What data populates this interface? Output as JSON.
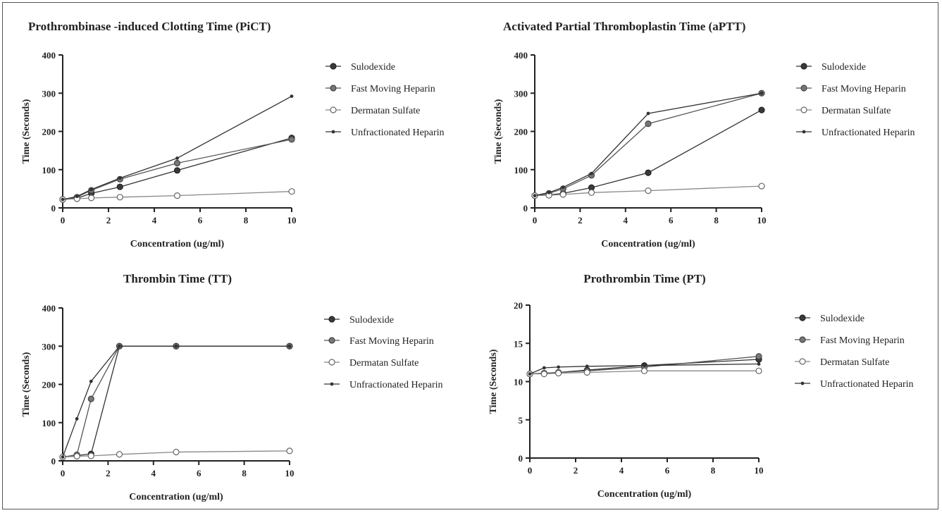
{
  "charts": [
    {
      "type": "line",
      "title": "Prothrombinase -induced Clotting Time (PiCT)",
      "xlabel": "Concentration (ug/ml)",
      "ylabel": "Time (Seconds)",
      "xlim": [
        0,
        10
      ],
      "ylim": [
        0,
        400
      ],
      "xticks": [
        0,
        2,
        4,
        6,
        8,
        10
      ],
      "yticks": [
        0,
        100,
        200,
        300,
        400
      ],
      "x": [
        0,
        0.625,
        1.25,
        2.5,
        5,
        10
      ],
      "series": [
        {
          "name": "Sulodexide",
          "values": [
            22,
            25,
            38,
            55,
            98,
            183
          ],
          "marker": "filled-dark"
        },
        {
          "name": "Fast Moving Heparin",
          "values": [
            22,
            28,
            46,
            75,
            117,
            179
          ],
          "marker": "filled-gray"
        },
        {
          "name": "Dermatan Sulfate",
          "values": [
            22,
            24,
            26,
            28,
            32,
            43
          ],
          "marker": "open"
        },
        {
          "name": "Unfractionated Heparin",
          "values": [
            22,
            30,
            48,
            78,
            130,
            292
          ],
          "marker": "small"
        }
      ]
    },
    {
      "type": "line",
      "title": "Activated  Partial Thromboplastin Time (aPTT)",
      "xlabel": "Concentration (ug/ml)",
      "ylabel": "Time (Seconds)",
      "xlim": [
        0,
        10
      ],
      "ylim": [
        0,
        400
      ],
      "xticks": [
        0,
        2,
        4,
        6,
        8,
        10
      ],
      "yticks": [
        0,
        100,
        200,
        300,
        400
      ],
      "x": [
        0,
        0.625,
        1.25,
        2.5,
        5,
        10
      ],
      "series": [
        {
          "name": "Sulodexide",
          "values": [
            32,
            34,
            38,
            53,
            92,
            256
          ],
          "marker": "filled-dark"
        },
        {
          "name": "Fast Moving Heparin",
          "values": [
            32,
            38,
            50,
            85,
            220,
            300
          ],
          "marker": "filled-gray"
        },
        {
          "name": "Dermatan Sulfate",
          "values": [
            32,
            33,
            35,
            40,
            45,
            57
          ],
          "marker": "open"
        },
        {
          "name": "Unfractionated Heparin",
          "values": [
            32,
            40,
            54,
            90,
            247,
            300
          ],
          "marker": "small"
        }
      ]
    },
    {
      "type": "line",
      "title": "Thrombin Time (TT)",
      "xlabel": "Concentration (ug/ml)",
      "ylabel": "Time (Seconds)",
      "xlim": [
        0,
        10
      ],
      "ylim": [
        0,
        400
      ],
      "xticks": [
        0,
        2,
        4,
        6,
        8,
        10
      ],
      "yticks": [
        0,
        100,
        200,
        300,
        400
      ],
      "x": [
        0,
        0.625,
        1.25,
        2.5,
        5,
        10
      ],
      "series": [
        {
          "name": "Sulodexide",
          "values": [
            10,
            14,
            18,
            300,
            300,
            300
          ],
          "marker": "filled-dark"
        },
        {
          "name": "Fast Moving Heparin",
          "values": [
            10,
            16,
            162,
            300,
            300,
            300
          ],
          "marker": "filled-gray"
        },
        {
          "name": "Dermatan Sulfate",
          "values": [
            10,
            12,
            13,
            17,
            23,
            26
          ],
          "marker": "open"
        },
        {
          "name": "Unfractionated Heparin",
          "values": [
            10,
            110,
            208,
            300,
            300,
            300
          ],
          "marker": "small"
        }
      ]
    },
    {
      "type": "line",
      "title": "Prothrombin Time (PT)",
      "xlabel": "Concentration (ug/ml)",
      "ylabel": "Time (Seconds)",
      "xlim": [
        0,
        10
      ],
      "ylim": [
        0,
        20
      ],
      "xticks": [
        0,
        2,
        4,
        6,
        8,
        10
      ],
      "yticks": [
        0,
        5,
        10,
        15,
        20
      ],
      "x": [
        0,
        0.625,
        1.25,
        2.5,
        5,
        10
      ],
      "series": [
        {
          "name": "Sulodexide",
          "values": [
            11,
            11.1,
            11.2,
            11.5,
            12.1,
            12.9
          ],
          "marker": "filled-dark"
        },
        {
          "name": "Fast Moving Heparin",
          "values": [
            11,
            11.1,
            11.2,
            11.4,
            11.9,
            13.3
          ],
          "marker": "filled-gray"
        },
        {
          "name": "Dermatan Sulfate",
          "values": [
            11,
            11.0,
            11.1,
            11.2,
            11.4,
            11.4
          ],
          "marker": "open"
        },
        {
          "name": "Unfractionated Heparin",
          "values": [
            11,
            11.8,
            11.9,
            12.0,
            12.1,
            12.3
          ],
          "marker": "small"
        }
      ]
    }
  ]
}
